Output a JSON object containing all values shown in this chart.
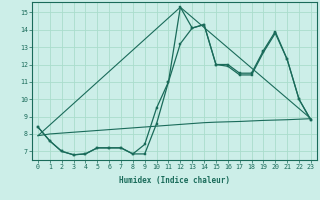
{
  "xlabel": "Humidex (Indice chaleur)",
  "bg_color": "#cceee8",
  "line_color": "#1a6b5a",
  "grid_color": "#aaddcc",
  "xlim": [
    -0.5,
    23.5
  ],
  "ylim": [
    6.5,
    15.6
  ],
  "xticks": [
    0,
    1,
    2,
    3,
    4,
    5,
    6,
    7,
    8,
    9,
    10,
    11,
    12,
    13,
    14,
    15,
    16,
    17,
    18,
    19,
    20,
    21,
    22,
    23
  ],
  "yticks": [
    7,
    8,
    9,
    10,
    11,
    12,
    13,
    14,
    15
  ],
  "series1": {
    "x": [
      0,
      1,
      2,
      3,
      4,
      5,
      6,
      7,
      8,
      9,
      10,
      11,
      12,
      13,
      14,
      15,
      16,
      17,
      18,
      19,
      20,
      21,
      22,
      23
    ],
    "y": [
      8.4,
      7.6,
      7.0,
      6.8,
      6.85,
      7.2,
      7.2,
      7.2,
      6.85,
      7.4,
      9.5,
      11.0,
      15.3,
      14.1,
      14.3,
      12.0,
      12.0,
      11.5,
      11.5,
      12.8,
      13.9,
      12.3,
      10.0,
      8.8
    ]
  },
  "series2": {
    "x": [
      0,
      1,
      2,
      3,
      4,
      5,
      6,
      7,
      8,
      9,
      10,
      11,
      12,
      13,
      14,
      15,
      16,
      17,
      18,
      19,
      20,
      21,
      22,
      23
    ],
    "y": [
      8.4,
      7.6,
      7.0,
      6.8,
      6.85,
      7.2,
      7.2,
      7.2,
      6.85,
      6.85,
      8.6,
      11.0,
      13.2,
      14.1,
      14.3,
      12.0,
      11.9,
      11.4,
      11.4,
      12.7,
      13.8,
      12.3,
      10.0,
      8.8
    ]
  },
  "series3": {
    "x": [
      0,
      1,
      2,
      3,
      4,
      5,
      6,
      7,
      8,
      9,
      10,
      11,
      12,
      13,
      14,
      15,
      16,
      17,
      18,
      19,
      20,
      21,
      22,
      23
    ],
    "y": [
      7.9,
      8.0,
      8.05,
      8.1,
      8.15,
      8.2,
      8.25,
      8.3,
      8.35,
      8.4,
      8.45,
      8.5,
      8.55,
      8.6,
      8.65,
      8.68,
      8.7,
      8.72,
      8.75,
      8.78,
      8.8,
      8.82,
      8.85,
      8.88
    ]
  },
  "series4": {
    "x": [
      0,
      12,
      23
    ],
    "y": [
      7.9,
      15.3,
      8.88
    ]
  }
}
